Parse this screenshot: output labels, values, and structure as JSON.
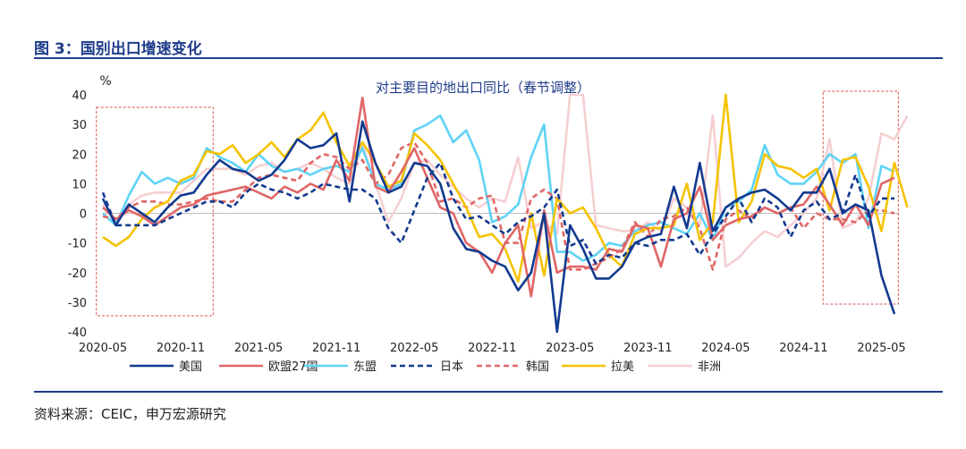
{
  "header": {
    "figure_title": "图 3：国别出口增速变化"
  },
  "footer": {
    "source": "资料来源：CEIC，申万宏源研究"
  },
  "chart_data": {
    "type": "line",
    "title": "对主要目的地出口同比（春节调整）",
    "ylabel": "%",
    "xlabel": "",
    "ylim": [
      -40,
      40
    ],
    "yticks": [
      -40,
      -30,
      -20,
      -10,
      0,
      10,
      20,
      30,
      40
    ],
    "x_tick_labels": [
      "2020-05",
      "2020-11",
      "2021-05",
      "2021-11",
      "2022-05",
      "2022-11",
      "2023-05",
      "2023-11",
      "2024-05",
      "2024-11",
      "2025-05"
    ],
    "legend_position": "bottom",
    "grid": false,
    "highlight_boxes": [
      "2020-05 to 2020-12",
      "2025-01 to 2025-05"
    ],
    "series": [
      {
        "name": "美国",
        "color": "#123a8f",
        "dash": "solid",
        "values": [
          5,
          -4,
          3,
          0,
          -3,
          2,
          6,
          7,
          13,
          18,
          15,
          14,
          11,
          13,
          18,
          25,
          22,
          23,
          27,
          4,
          31,
          17,
          7,
          9,
          17,
          16,
          10,
          -5,
          -12,
          -13,
          -16,
          -18,
          -26,
          -20,
          0,
          -40,
          -4,
          -12,
          -22,
          -22,
          -18,
          -10,
          -8,
          -7,
          9,
          -5,
          17,
          -6,
          2,
          5,
          7,
          8,
          5,
          1,
          7,
          7,
          15,
          0,
          3,
          1,
          -21,
          -34
        ]
      },
      {
        "name": "欧盟27国",
        "color": "#e06666",
        "dash": "solid",
        "values": [
          2,
          -2,
          1,
          -1,
          -4,
          -1,
          2,
          3,
          6,
          7,
          8,
          9,
          7,
          5,
          9,
          7,
          10,
          8,
          18,
          11,
          39,
          9,
          7,
          14,
          22,
          12,
          2,
          0,
          -10,
          -13,
          -20,
          -10,
          -4,
          -28,
          1,
          -20,
          -18,
          -18,
          -19,
          -12,
          -13,
          -4,
          -5,
          -18,
          -2,
          0,
          9,
          -9,
          -4,
          -2,
          -1,
          2,
          0,
          2,
          3,
          9,
          3,
          -4,
          3,
          -4,
          10,
          12
        ]
      },
      {
        "name": "东盟",
        "color": "#5fd3f5",
        "dash": "solid",
        "values": [
          0,
          -4,
          6,
          14,
          10,
          12,
          10,
          12,
          22,
          19,
          17,
          14,
          20,
          16,
          14,
          15,
          13,
          15,
          16,
          14,
          22,
          10,
          8,
          10,
          28,
          30,
          33,
          24,
          28,
          18,
          -3,
          -1,
          3,
          19,
          30,
          -13,
          -13,
          -16,
          -14,
          -10,
          -11,
          -6,
          -4,
          -3,
          -5,
          -7,
          0,
          -9,
          2,
          4,
          8,
          23,
          13,
          10,
          10,
          14,
          20,
          17,
          20,
          -5,
          16,
          14
        ]
      },
      {
        "name": "日本",
        "color": "#123a8f",
        "dash": "dashed",
        "values": [
          7,
          -4,
          -4,
          -4,
          -4,
          -2,
          0,
          2,
          4,
          4,
          2,
          7,
          10,
          8,
          7,
          5,
          7,
          10,
          9,
          8,
          8,
          5,
          -5,
          -10,
          1,
          12,
          17,
          5,
          -2,
          -1,
          -4,
          -7,
          -3,
          -1,
          2,
          8,
          -11,
          -9,
          -17,
          -14,
          -15,
          -10,
          -11,
          -9,
          -9,
          -7,
          -14,
          -7,
          -1,
          5,
          -3,
          5,
          2,
          -8,
          1,
          4,
          -2,
          0,
          13,
          -1,
          5,
          5
        ]
      },
      {
        "name": "韩国",
        "color": "#e06666",
        "dash": "dashed",
        "values": [
          -1,
          -2,
          2,
          4,
          4,
          3,
          3,
          4,
          5,
          4,
          4,
          8,
          12,
          13,
          12,
          11,
          17,
          20,
          19,
          15,
          18,
          10,
          13,
          22,
          24,
          17,
          4,
          5,
          2,
          5,
          6,
          -10,
          -10,
          5,
          8,
          5,
          -19,
          -19,
          -17,
          -15,
          -12,
          -3,
          -8,
          -2,
          -1,
          2,
          -5,
          -19,
          -2,
          1,
          -2,
          2,
          0,
          2,
          -5,
          0,
          -2,
          -2,
          -3,
          1,
          1,
          0
        ]
      },
      {
        "name": "拉美",
        "color": "#f5c300",
        "dash": "solid",
        "values": [
          -8,
          -11,
          -8,
          -2,
          2,
          4,
          11,
          13,
          21,
          20,
          23,
          17,
          20,
          24,
          19,
          25,
          28,
          34,
          24,
          16,
          24,
          17,
          9,
          11,
          27,
          23,
          18,
          10,
          2,
          -8,
          -7,
          -12,
          -23,
          0,
          -21,
          5,
          0,
          2,
          -5,
          -14,
          -18,
          -7,
          -5,
          -5,
          -4,
          10,
          -9,
          -3,
          46,
          -3,
          4,
          20,
          16,
          15,
          12,
          15,
          1,
          18,
          19,
          9,
          -6,
          17,
          2
        ]
      },
      {
        "name": "非洲",
        "color": "#f6cfd2",
        "dash": "solid",
        "values": [
          3,
          -3,
          3,
          6,
          7,
          7,
          7,
          11,
          15,
          15,
          15,
          13,
          16,
          17,
          14,
          15,
          17,
          15,
          12,
          10,
          23,
          10,
          -3,
          5,
          17,
          18,
          13,
          9,
          5,
          2,
          5,
          4,
          19,
          -5,
          -3,
          -7,
          40,
          40,
          -4,
          -5,
          -6,
          -6,
          -3,
          -6,
          5,
          2,
          -4,
          33,
          -18,
          -15,
          -10,
          -6,
          -8,
          -4,
          0,
          5,
          25,
          -5,
          -3,
          5,
          27,
          25,
          33
        ]
      }
    ]
  }
}
